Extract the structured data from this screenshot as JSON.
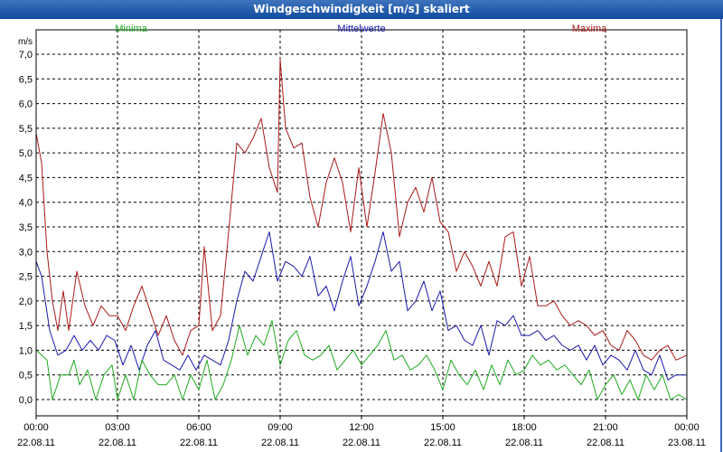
{
  "window": {
    "title": "Windgeschwindigkeit [m/s] skaliert"
  },
  "chart_data": {
    "type": "line",
    "title": "Windgeschwindigkeit [m/s] skaliert",
    "ylabel": "m/s",
    "ylim": [
      0,
      7
    ],
    "y_ticks": [
      "0,0",
      "0,5",
      "1,0",
      "1,5",
      "2,0",
      "2,5",
      "3,0",
      "3,5",
      "4,0",
      "4,5",
      "5,0",
      "5,5",
      "6,0",
      "6,5",
      "7,0"
    ],
    "x_range_hours": [
      0,
      24
    ],
    "x_ticks": [
      {
        "time": "00:00",
        "date": "22.08.11"
      },
      {
        "time": "03:00",
        "date": "22.08.11"
      },
      {
        "time": "06:00",
        "date": "22.08.11"
      },
      {
        "time": "09:00",
        "date": "22.08.11"
      },
      {
        "time": "12:00",
        "date": "22.08.11"
      },
      {
        "time": "15:00",
        "date": "22.08.11"
      },
      {
        "time": "18:00",
        "date": "22.08.11"
      },
      {
        "time": "21:00",
        "date": "22.08.11"
      },
      {
        "time": "00:00",
        "date": "23.08.11"
      }
    ],
    "grid": true,
    "series": [
      {
        "name": "Minima",
        "color": "#22aa22",
        "points": [
          [
            0,
            1
          ],
          [
            0.4,
            0.8
          ],
          [
            0.6,
            0
          ],
          [
            0.9,
            0.5
          ],
          [
            1.2,
            0.5
          ],
          [
            1.4,
            0.8
          ],
          [
            1.6,
            0.3
          ],
          [
            1.9,
            0.6
          ],
          [
            2.2,
            0
          ],
          [
            2.5,
            0.5
          ],
          [
            2.8,
            0.7
          ],
          [
            3.0,
            0
          ],
          [
            3.3,
            0.5
          ],
          [
            3.6,
            0
          ],
          [
            3.9,
            0.8
          ],
          [
            4.2,
            0.5
          ],
          [
            4.5,
            0.3
          ],
          [
            4.8,
            0.3
          ],
          [
            5.1,
            0.5
          ],
          [
            5.4,
            0
          ],
          [
            5.7,
            0.5
          ],
          [
            6.0,
            0.2
          ],
          [
            6.3,
            0.8
          ],
          [
            6.6,
            0
          ],
          [
            6.9,
            0.3
          ],
          [
            7.2,
            0.8
          ],
          [
            7.5,
            1.5
          ],
          [
            7.8,
            0.9
          ],
          [
            8.1,
            1.3
          ],
          [
            8.4,
            1.1
          ],
          [
            8.7,
            1.6
          ],
          [
            9.0,
            0.7
          ],
          [
            9.3,
            1.2
          ],
          [
            9.6,
            1.4
          ],
          [
            9.9,
            0.9
          ],
          [
            10.2,
            0.8
          ],
          [
            10.5,
            0.9
          ],
          [
            10.8,
            1.1
          ],
          [
            11.1,
            0.6
          ],
          [
            11.4,
            0.8
          ],
          [
            11.7,
            1.0
          ],
          [
            12.0,
            0.7
          ],
          [
            12.3,
            0.9
          ],
          [
            12.6,
            1.1
          ],
          [
            12.9,
            1.4
          ],
          [
            13.2,
            0.8
          ],
          [
            13.5,
            0.9
          ],
          [
            13.8,
            0.6
          ],
          [
            14.1,
            0.7
          ],
          [
            14.4,
            0.9
          ],
          [
            14.7,
            0.6
          ],
          [
            15.0,
            0.2
          ],
          [
            15.3,
            0.8
          ],
          [
            15.6,
            0.5
          ],
          [
            15.9,
            0.3
          ],
          [
            16.2,
            0.6
          ],
          [
            16.5,
            0.2
          ],
          [
            16.8,
            0.7
          ],
          [
            17.1,
            0.3
          ],
          [
            17.4,
            0.8
          ],
          [
            17.7,
            0.5
          ],
          [
            18.0,
            0.6
          ],
          [
            18.3,
            0.9
          ],
          [
            18.6,
            0.7
          ],
          [
            18.9,
            0.8
          ],
          [
            19.2,
            0.6
          ],
          [
            19.5,
            0.7
          ],
          [
            19.8,
            0.5
          ],
          [
            20.1,
            0.3
          ],
          [
            20.4,
            0.6
          ],
          [
            20.7,
            0
          ],
          [
            21.0,
            0.3
          ],
          [
            21.3,
            0.5
          ],
          [
            21.6,
            0.1
          ],
          [
            21.9,
            0.4
          ],
          [
            22.2,
            0
          ],
          [
            22.5,
            0.5
          ],
          [
            22.8,
            0.2
          ],
          [
            23.1,
            0.5
          ],
          [
            23.4,
            0
          ],
          [
            23.7,
            0.1
          ],
          [
            24.0,
            0
          ]
        ]
      },
      {
        "name": "Mittelwerte",
        "color": "#1a1aaa",
        "points": [
          [
            0,
            2.8
          ],
          [
            0.2,
            2.5
          ],
          [
            0.5,
            1.4
          ],
          [
            0.8,
            0.9
          ],
          [
            1.1,
            1.0
          ],
          [
            1.4,
            1.3
          ],
          [
            1.7,
            1.0
          ],
          [
            2.0,
            1.2
          ],
          [
            2.3,
            1.0
          ],
          [
            2.6,
            1.3
          ],
          [
            2.9,
            1.2
          ],
          [
            3.2,
            0.7
          ],
          [
            3.5,
            1.1
          ],
          [
            3.8,
            0.6
          ],
          [
            4.1,
            1.1
          ],
          [
            4.4,
            1.4
          ],
          [
            4.7,
            0.8
          ],
          [
            5.0,
            0.7
          ],
          [
            5.3,
            0.6
          ],
          [
            5.6,
            0.9
          ],
          [
            5.9,
            0.6
          ],
          [
            6.2,
            0.9
          ],
          [
            6.5,
            0.8
          ],
          [
            6.8,
            0.7
          ],
          [
            7.1,
            1.2
          ],
          [
            7.4,
            2.0
          ],
          [
            7.7,
            2.6
          ],
          [
            8.0,
            2.4
          ],
          [
            8.3,
            2.9
          ],
          [
            8.6,
            3.4
          ],
          [
            8.9,
            2.4
          ],
          [
            9.2,
            2.8
          ],
          [
            9.5,
            2.7
          ],
          [
            9.8,
            2.5
          ],
          [
            10.1,
            2.9
          ],
          [
            10.4,
            2.1
          ],
          [
            10.7,
            2.3
          ],
          [
            11.0,
            1.8
          ],
          [
            11.3,
            2.4
          ],
          [
            11.6,
            2.9
          ],
          [
            11.9,
            1.9
          ],
          [
            12.2,
            2.3
          ],
          [
            12.5,
            2.8
          ],
          [
            12.8,
            3.4
          ],
          [
            13.1,
            2.6
          ],
          [
            13.4,
            2.8
          ],
          [
            13.7,
            1.8
          ],
          [
            14.0,
            2.0
          ],
          [
            14.3,
            2.4
          ],
          [
            14.6,
            1.8
          ],
          [
            14.9,
            2.2
          ],
          [
            15.2,
            1.4
          ],
          [
            15.5,
            1.5
          ],
          [
            15.8,
            1.2
          ],
          [
            16.1,
            1.1
          ],
          [
            16.4,
            1.5
          ],
          [
            16.7,
            0.9
          ],
          [
            17.0,
            1.6
          ],
          [
            17.3,
            1.5
          ],
          [
            17.6,
            1.7
          ],
          [
            17.9,
            1.3
          ],
          [
            18.2,
            1.3
          ],
          [
            18.5,
            1.4
          ],
          [
            18.8,
            1.2
          ],
          [
            19.1,
            1.3
          ],
          [
            19.4,
            1.1
          ],
          [
            19.7,
            1.0
          ],
          [
            20.0,
            1.1
          ],
          [
            20.3,
            0.8
          ],
          [
            20.6,
            1.1
          ],
          [
            20.9,
            0.7
          ],
          [
            21.2,
            0.9
          ],
          [
            21.5,
            0.8
          ],
          [
            21.8,
            0.6
          ],
          [
            22.1,
            1.0
          ],
          [
            22.4,
            0.6
          ],
          [
            22.7,
            0.5
          ],
          [
            23.0,
            0.9
          ],
          [
            23.3,
            0.4
          ],
          [
            23.6,
            0.5
          ],
          [
            24.0,
            0.5
          ]
        ]
      },
      {
        "name": "Maxima",
        "color": "#aa1a1a",
        "points": [
          [
            0,
            5.4
          ],
          [
            0.2,
            4.8
          ],
          [
            0.4,
            3.0
          ],
          [
            0.6,
            2.0
          ],
          [
            0.8,
            1.4
          ],
          [
            1.0,
            2.2
          ],
          [
            1.2,
            1.4
          ],
          [
            1.5,
            2.6
          ],
          [
            1.8,
            1.9
          ],
          [
            2.1,
            1.5
          ],
          [
            2.4,
            1.9
          ],
          [
            2.7,
            1.7
          ],
          [
            3.0,
            1.7
          ],
          [
            3.3,
            1.4
          ],
          [
            3.6,
            1.9
          ],
          [
            3.9,
            2.3
          ],
          [
            4.2,
            1.8
          ],
          [
            4.5,
            1.3
          ],
          [
            4.8,
            1.7
          ],
          [
            5.1,
            1.2
          ],
          [
            5.4,
            0.9
          ],
          [
            5.7,
            1.4
          ],
          [
            6.0,
            1.5
          ],
          [
            6.2,
            3.1
          ],
          [
            6.5,
            1.4
          ],
          [
            6.8,
            1.7
          ],
          [
            7.1,
            3.4
          ],
          [
            7.4,
            5.2
          ],
          [
            7.7,
            5.0
          ],
          [
            8.0,
            5.3
          ],
          [
            8.3,
            5.7
          ],
          [
            8.6,
            4.7
          ],
          [
            8.9,
            4.2
          ],
          [
            9.0,
            6.9
          ],
          [
            9.2,
            5.5
          ],
          [
            9.5,
            5.1
          ],
          [
            9.8,
            5.2
          ],
          [
            10.1,
            4.1
          ],
          [
            10.4,
            3.5
          ],
          [
            10.7,
            4.4
          ],
          [
            11.0,
            4.9
          ],
          [
            11.3,
            4.4
          ],
          [
            11.6,
            3.4
          ],
          [
            11.9,
            4.7
          ],
          [
            12.2,
            3.5
          ],
          [
            12.5,
            4.6
          ],
          [
            12.8,
            5.8
          ],
          [
            13.1,
            5.0
          ],
          [
            13.4,
            3.3
          ],
          [
            13.7,
            4.0
          ],
          [
            14.0,
            4.3
          ],
          [
            14.3,
            3.8
          ],
          [
            14.6,
            4.5
          ],
          [
            14.9,
            3.6
          ],
          [
            15.2,
            3.4
          ],
          [
            15.5,
            2.6
          ],
          [
            15.8,
            3.0
          ],
          [
            16.1,
            2.7
          ],
          [
            16.4,
            2.3
          ],
          [
            16.7,
            2.8
          ],
          [
            17.0,
            2.3
          ],
          [
            17.3,
            3.3
          ],
          [
            17.6,
            3.4
          ],
          [
            17.9,
            2.3
          ],
          [
            18.2,
            2.9
          ],
          [
            18.5,
            1.9
          ],
          [
            18.8,
            1.9
          ],
          [
            19.1,
            2.0
          ],
          [
            19.4,
            1.7
          ],
          [
            19.7,
            1.5
          ],
          [
            20.0,
            1.6
          ],
          [
            20.3,
            1.5
          ],
          [
            20.6,
            1.3
          ],
          [
            20.9,
            1.4
          ],
          [
            21.2,
            1.1
          ],
          [
            21.5,
            1.0
          ],
          [
            21.8,
            1.4
          ],
          [
            22.1,
            1.2
          ],
          [
            22.4,
            0.9
          ],
          [
            22.7,
            0.8
          ],
          [
            23.0,
            1.0
          ],
          [
            23.3,
            1.1
          ],
          [
            23.6,
            0.8
          ],
          [
            24.0,
            0.9
          ]
        ]
      }
    ]
  }
}
